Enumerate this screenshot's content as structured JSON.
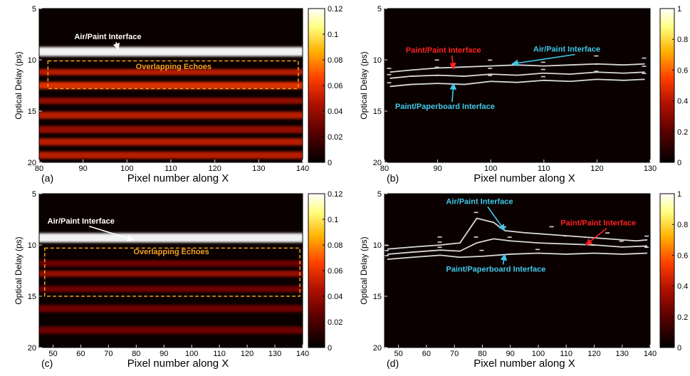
{
  "colors": {
    "panel_bg": "#0a0000",
    "hot_ramp": [
      "#000000",
      "#5a0000",
      "#b01000",
      "#ff4000",
      "#ffb000",
      "#ffff80",
      "#ffffff"
    ],
    "annotation_white": "#ffffff",
    "annotation_orange": "#f0a020",
    "annotation_red": "#ff2020",
    "annotation_cyan": "#40c8e8",
    "trace_line": "#d8d8d8"
  },
  "chart_data": [
    {
      "id": "a",
      "type": "heatmap",
      "panel_label": "(a)",
      "xlabel": "Pixel number along X",
      "ylabel": "Optical Delay (ps)",
      "xlim": [
        80,
        140
      ],
      "ylim": [
        5,
        20
      ],
      "xticks": [
        "80",
        "90",
        "100",
        "110",
        "120",
        "130",
        "140"
      ],
      "yticks": [
        "5",
        "10",
        "15",
        "20"
      ],
      "colorbar": {
        "range": [
          0,
          0.12
        ],
        "ticks": [
          "0",
          "0.02",
          "0.04",
          "0.06",
          "0.08",
          "0.1",
          "0.12"
        ]
      },
      "bands": [
        {
          "y": 9.2,
          "intensity": 0.12,
          "width": 0.45
        },
        {
          "y": 11.2,
          "intensity": 0.05,
          "width": 0.3
        },
        {
          "y": 12.5,
          "intensity": 0.06,
          "width": 0.35
        },
        {
          "y": 14.0,
          "intensity": 0.04,
          "width": 0.3
        },
        {
          "y": 15.4,
          "intensity": 0.05,
          "width": 0.35
        },
        {
          "y": 16.8,
          "intensity": 0.04,
          "width": 0.35
        },
        {
          "y": 18.0,
          "intensity": 0.05,
          "width": 0.35
        },
        {
          "y": 19.3,
          "intensity": 0.05,
          "width": 0.35
        }
      ],
      "echo_box": {
        "x": [
          82,
          139
        ],
        "y": [
          10.1,
          12.8
        ]
      },
      "annotations": [
        {
          "text": "Air/Paint Interface",
          "color": "white",
          "x": 88,
          "y": 8.0
        },
        {
          "text": "Overlapping Echoes",
          "color": "orange",
          "x": 102,
          "y": 10.9
        }
      ]
    },
    {
      "id": "b",
      "type": "line",
      "panel_label": "(b)",
      "xlabel": "Pixel number along X",
      "ylabel": "Optical Delay (ps)",
      "xlim": [
        80,
        130
      ],
      "ylim": [
        5,
        20
      ],
      "xticks": [
        "80",
        "90",
        "100",
        "110",
        "120",
        "130"
      ],
      "yticks": [
        "5",
        "10",
        "15",
        "20"
      ],
      "colorbar": {
        "range": [
          0,
          1
        ],
        "ticks": [
          "0",
          "0.2",
          "0.4",
          "0.6",
          "0.8",
          "1"
        ]
      },
      "series": [
        {
          "x": [
            81,
            85,
            90,
            95,
            100,
            105,
            110,
            115,
            120,
            125,
            129
          ],
          "y": [
            11.2,
            11.0,
            10.8,
            10.7,
            10.6,
            10.5,
            10.6,
            10.5,
            10.4,
            10.5,
            10.4
          ]
        },
        {
          "x": [
            81,
            85,
            90,
            95,
            100,
            105,
            110,
            115,
            120,
            125,
            129
          ],
          "y": [
            11.8,
            11.6,
            11.5,
            11.6,
            11.4,
            11.5,
            11.3,
            11.4,
            11.2,
            11.3,
            11.2
          ]
        },
        {
          "x": [
            81,
            85,
            90,
            95,
            100,
            105,
            110,
            115,
            120,
            125,
            129
          ],
          "y": [
            12.6,
            12.4,
            12.3,
            12.4,
            12.1,
            12.2,
            12.0,
            12.1,
            11.9,
            12.0,
            11.9
          ]
        }
      ],
      "annotations": [
        {
          "text": "Paint/Paint Interface",
          "color": "red",
          "x": 84,
          "y": 9.3
        },
        {
          "text": "Air/Paint Interface",
          "color": "cyan",
          "x": 108,
          "y": 9.2
        },
        {
          "text": "Paint/Paperboard Interface",
          "color": "cyan",
          "x": 82,
          "y": 14.8
        }
      ]
    },
    {
      "id": "c",
      "type": "heatmap",
      "panel_label": "(c)",
      "xlabel": "Pixel number along X",
      "ylabel": "Optical Delay (ps)",
      "xlim": [
        45,
        140
      ],
      "ylim": [
        5,
        20
      ],
      "xticks": [
        "50",
        "60",
        "70",
        "80",
        "90",
        "100",
        "110",
        "120",
        "130",
        "140"
      ],
      "yticks": [
        "5",
        "10",
        "15",
        "20"
      ],
      "colorbar": {
        "range": [
          0,
          0.12
        ],
        "ticks": [
          "0",
          "0.02",
          "0.04",
          "0.06",
          "0.08",
          "0.1",
          "0.12"
        ]
      },
      "bands": [
        {
          "y": 9.3,
          "intensity": 0.12,
          "width": 0.45
        },
        {
          "y": 11.8,
          "intensity": 0.03,
          "width": 0.3
        },
        {
          "y": 12.8,
          "intensity": 0.04,
          "width": 0.3
        },
        {
          "y": 14.3,
          "intensity": 0.03,
          "width": 0.3
        },
        {
          "y": 16.2,
          "intensity": 0.03,
          "width": 0.35
        },
        {
          "y": 18.3,
          "intensity": 0.03,
          "width": 0.35
        }
      ],
      "echo_box": {
        "x": [
          47,
          139
        ],
        "y": [
          10.3,
          15.0
        ]
      },
      "annotations": [
        {
          "text": "Air/Paint Interface",
          "color": "white",
          "x": 48,
          "y": 7.9
        },
        {
          "text": "Overlapping Echoes",
          "color": "orange",
          "x": 79,
          "y": 10.9
        }
      ]
    },
    {
      "id": "d",
      "type": "line",
      "panel_label": "(d)",
      "xlabel": "Pixel number along X",
      "ylabel": "Optical Delay (ps)",
      "xlim": [
        45,
        140
      ],
      "ylim": [
        5,
        20
      ],
      "xticks": [
        "50",
        "60",
        "70",
        "80",
        "90",
        "100",
        "110",
        "120",
        "130",
        "140"
      ],
      "yticks": [
        "5",
        "10",
        "15",
        "20"
      ],
      "colorbar": {
        "range": [
          0,
          1
        ],
        "ticks": [
          "0",
          "0.2",
          "0.4",
          "0.6",
          "0.8",
          "1"
        ]
      },
      "series": [
        {
          "x": [
            46,
            55,
            65,
            72,
            78,
            84,
            88,
            95,
            105,
            115,
            125,
            135,
            139
          ],
          "y": [
            10.4,
            10.2,
            10.0,
            9.8,
            7.4,
            7.8,
            8.6,
            8.8,
            9.0,
            9.2,
            9.4,
            9.6,
            9.5
          ]
        },
        {
          "x": [
            46,
            55,
            65,
            72,
            78,
            84,
            90,
            100,
            110,
            120,
            130,
            139
          ],
          "y": [
            10.9,
            10.7,
            10.5,
            10.6,
            9.8,
            9.4,
            9.6,
            9.8,
            9.9,
            10.0,
            10.2,
            10.1
          ]
        },
        {
          "x": [
            46,
            55,
            65,
            72,
            80,
            90,
            100,
            110,
            120,
            130,
            139
          ],
          "y": [
            11.4,
            11.2,
            11.0,
            11.2,
            11.1,
            10.9,
            10.8,
            10.9,
            10.8,
            10.9,
            10.8
          ]
        }
      ],
      "annotations": [
        {
          "text": "Air/Paint Interface",
          "color": "cyan",
          "x": 67,
          "y": 6.0
        },
        {
          "text": "Paint/Paint Interface",
          "color": "red",
          "x": 108,
          "y": 8.1
        },
        {
          "text": "Paint/Paperboard Interface",
          "color": "cyan",
          "x": 67,
          "y": 12.6
        }
      ]
    }
  ]
}
